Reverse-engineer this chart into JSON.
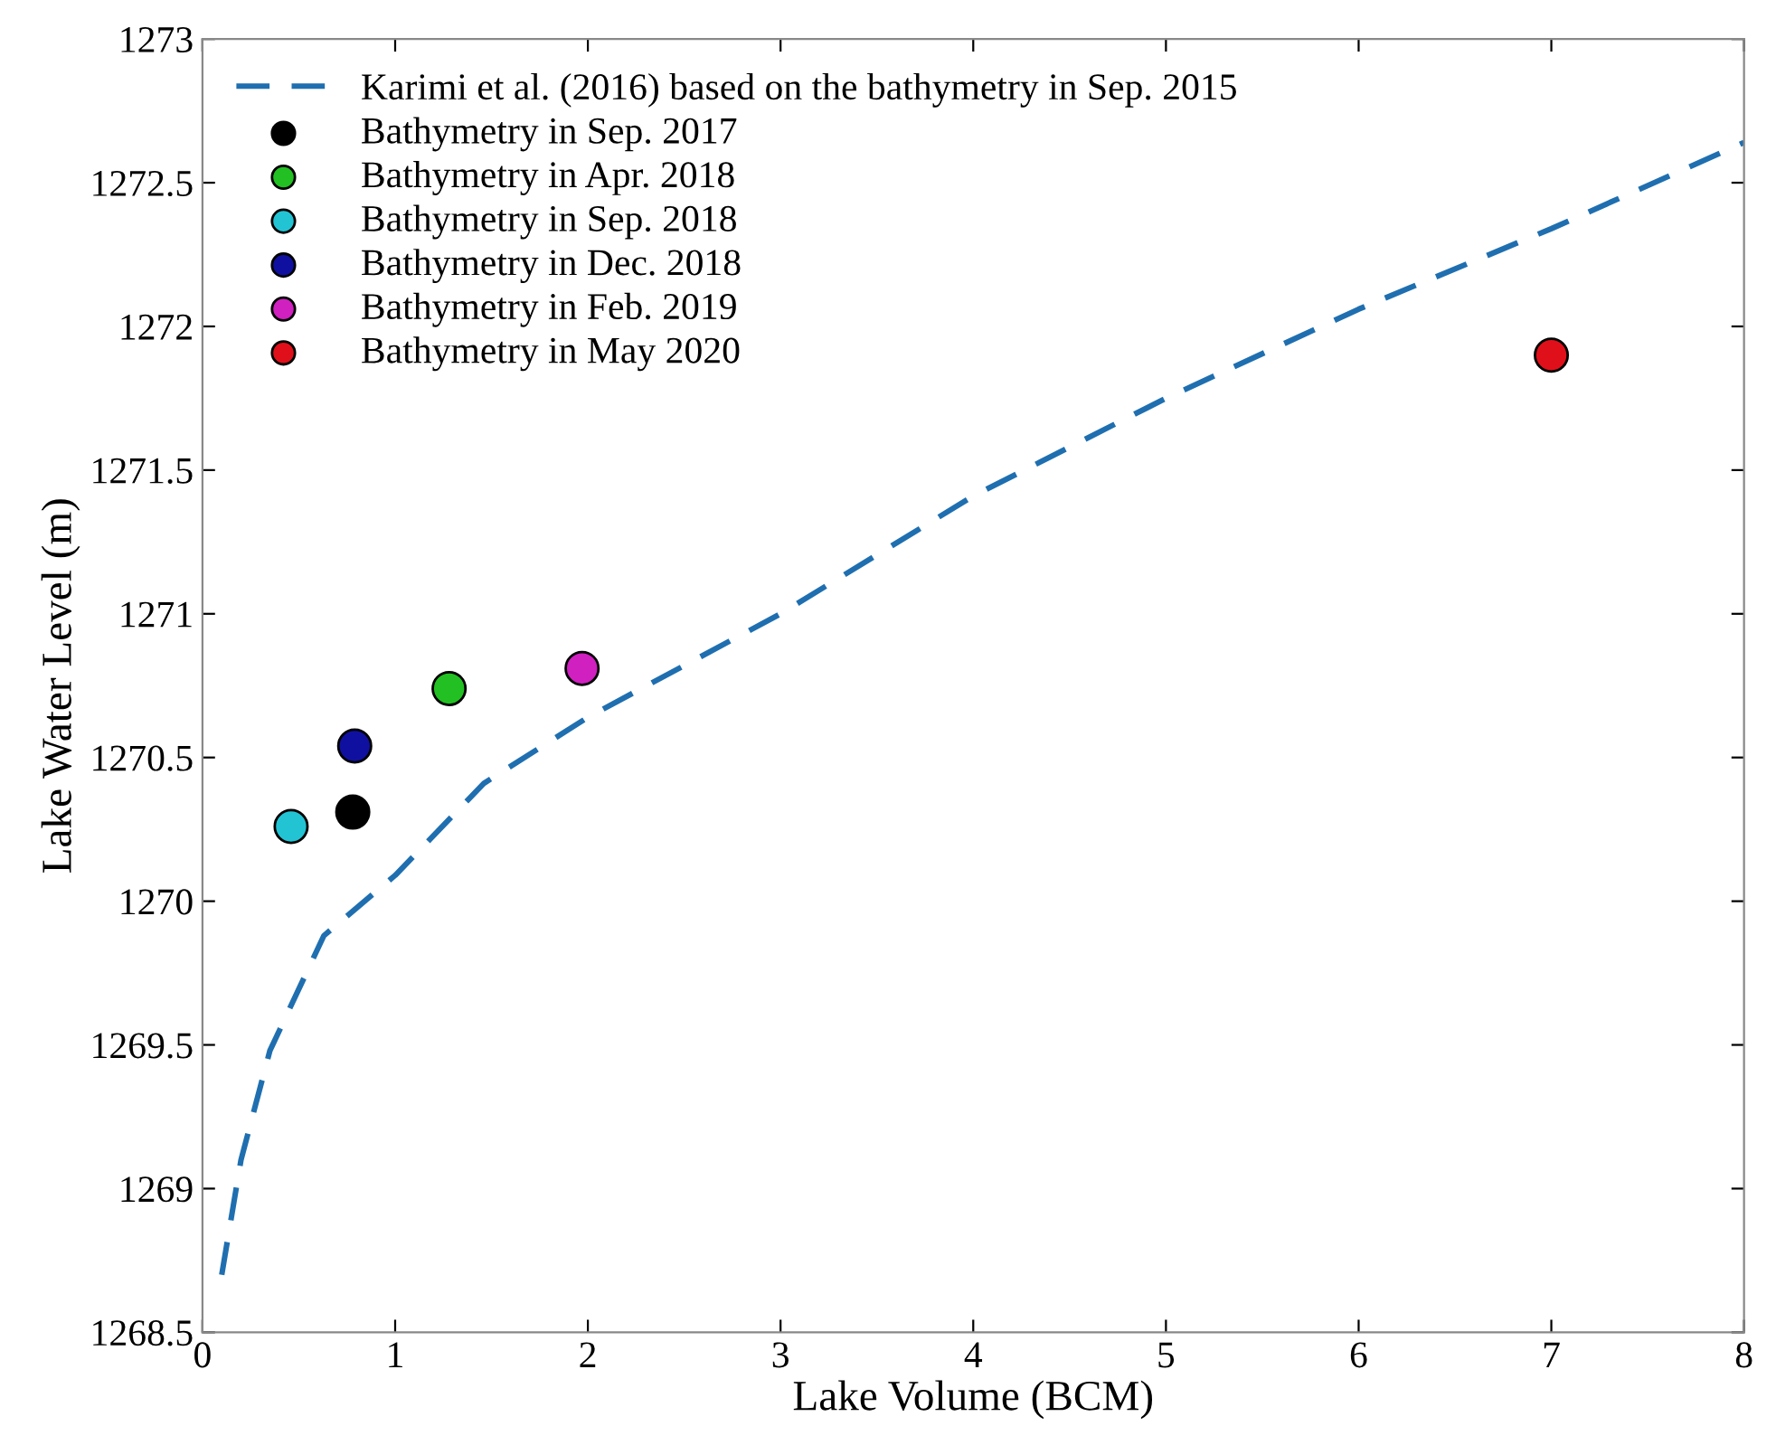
{
  "chart_data": {
    "type": "scatter",
    "xlabel": "Lake Volume (BCM)",
    "ylabel": "Lake Water Level (m)",
    "xlim": [
      0,
      8
    ],
    "xticks": [
      0,
      1,
      2,
      3,
      4,
      5,
      6,
      7,
      8
    ],
    "ylim": [
      1268.5,
      1273
    ],
    "yticks": [
      1268.5,
      1269,
      1269.5,
      1270,
      1270.5,
      1271,
      1271.5,
      1272,
      1272.5,
      1273
    ],
    "grid": false,
    "legend": "top left",
    "series": [
      {
        "name": "Karimi et al. (2016) based on the bathymetry in Sep. 2015",
        "type": "line",
        "line_style": "dashed",
        "marker": "none",
        "color": "#1f6fb0",
        "x": [
          0.1,
          0.2,
          0.35,
          0.63,
          1.0,
          1.46,
          2.0,
          3.0,
          4.0,
          5.0,
          6.0,
          7.0,
          8.0
        ],
        "values": [
          1268.7,
          1269.1,
          1269.48,
          1269.88,
          1270.09,
          1270.41,
          1270.64,
          1271.0,
          1271.41,
          1271.75,
          1272.06,
          1272.34,
          1272.64
        ]
      },
      {
        "name": "Bathymetry in Sep. 2017",
        "marker": "circle",
        "color": "#000000",
        "x": [
          0.78
        ],
        "values": [
          1270.31
        ]
      },
      {
        "name": "Bathymetry in Apr. 2018",
        "marker": "circle",
        "color": "#22c022",
        "x": [
          1.28
        ],
        "values": [
          1270.74
        ]
      },
      {
        "name": "Bathymetry in Sep. 2018",
        "marker": "circle",
        "color": "#22c4d4",
        "x": [
          0.46
        ],
        "values": [
          1270.26
        ]
      },
      {
        "name": "Bathymetry in Dec. 2018",
        "marker": "circle",
        "color": "#1010a0",
        "x": [
          0.79
        ],
        "values": [
          1270.54
        ]
      },
      {
        "name": "Bathymetry in Feb. 2019",
        "marker": "circle",
        "color": "#d020c0",
        "x": [
          1.97
        ],
        "values": [
          1270.81
        ]
      },
      {
        "name": "Bathymetry in May 2020",
        "marker": "circle",
        "color": "#e0101a",
        "x": [
          7.0
        ],
        "values": [
          1271.9
        ]
      }
    ]
  }
}
